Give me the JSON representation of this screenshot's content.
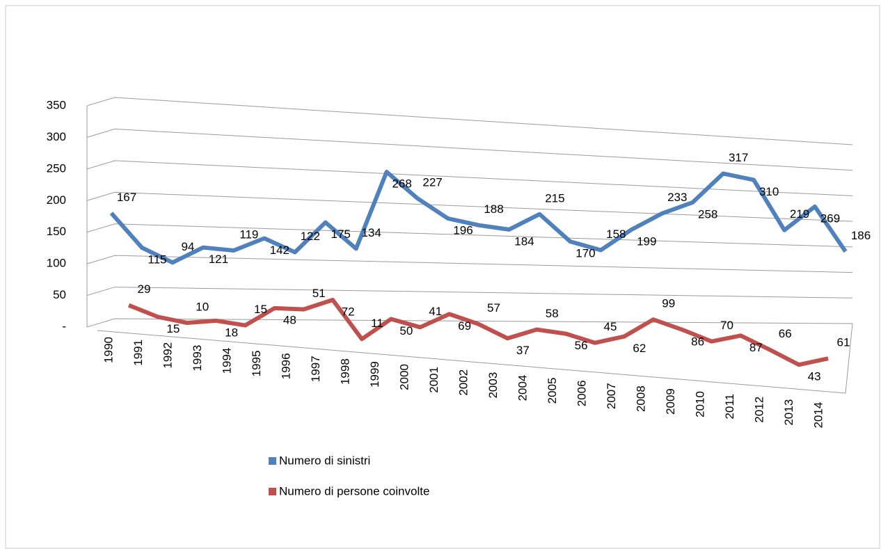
{
  "chart_data": {
    "type": "line",
    "categories": [
      "1990",
      "1991",
      "1992",
      "1993",
      "1994",
      "1995",
      "1996",
      "1997",
      "1998",
      "1999",
      "2000",
      "2001",
      "2002",
      "2003",
      "2004",
      "2005",
      "2006",
      "2007",
      "2008",
      "2009",
      "2010",
      "2011",
      "2012",
      "2013",
      "2014"
    ],
    "series": [
      {
        "name": "Numero di sinistri",
        "color": "#4f81bd",
        "values": [
          167,
          115,
          94,
          121,
          119,
          142,
          122,
          175,
          134,
          268,
          227,
          196,
          188,
          184,
          215,
          170,
          158,
          199,
          233,
          258,
          317,
          310,
          219,
          269,
          186
        ]
      },
      {
        "name": "Numero di persone coinvolte",
        "color": "#c0504d",
        "values": [
          29,
          15,
          10,
          18,
          15,
          48,
          51,
          72,
          11,
          50,
          41,
          69,
          57,
          37,
          58,
          56,
          45,
          62,
          99,
          86,
          70,
          87,
          66,
          43,
          61
        ]
      }
    ],
    "ylim": [
      0,
      350
    ],
    "yticks": [
      {
        "value": 0,
        "label": "-"
      },
      50,
      100,
      150,
      200,
      250,
      300,
      350
    ],
    "grid": true
  }
}
